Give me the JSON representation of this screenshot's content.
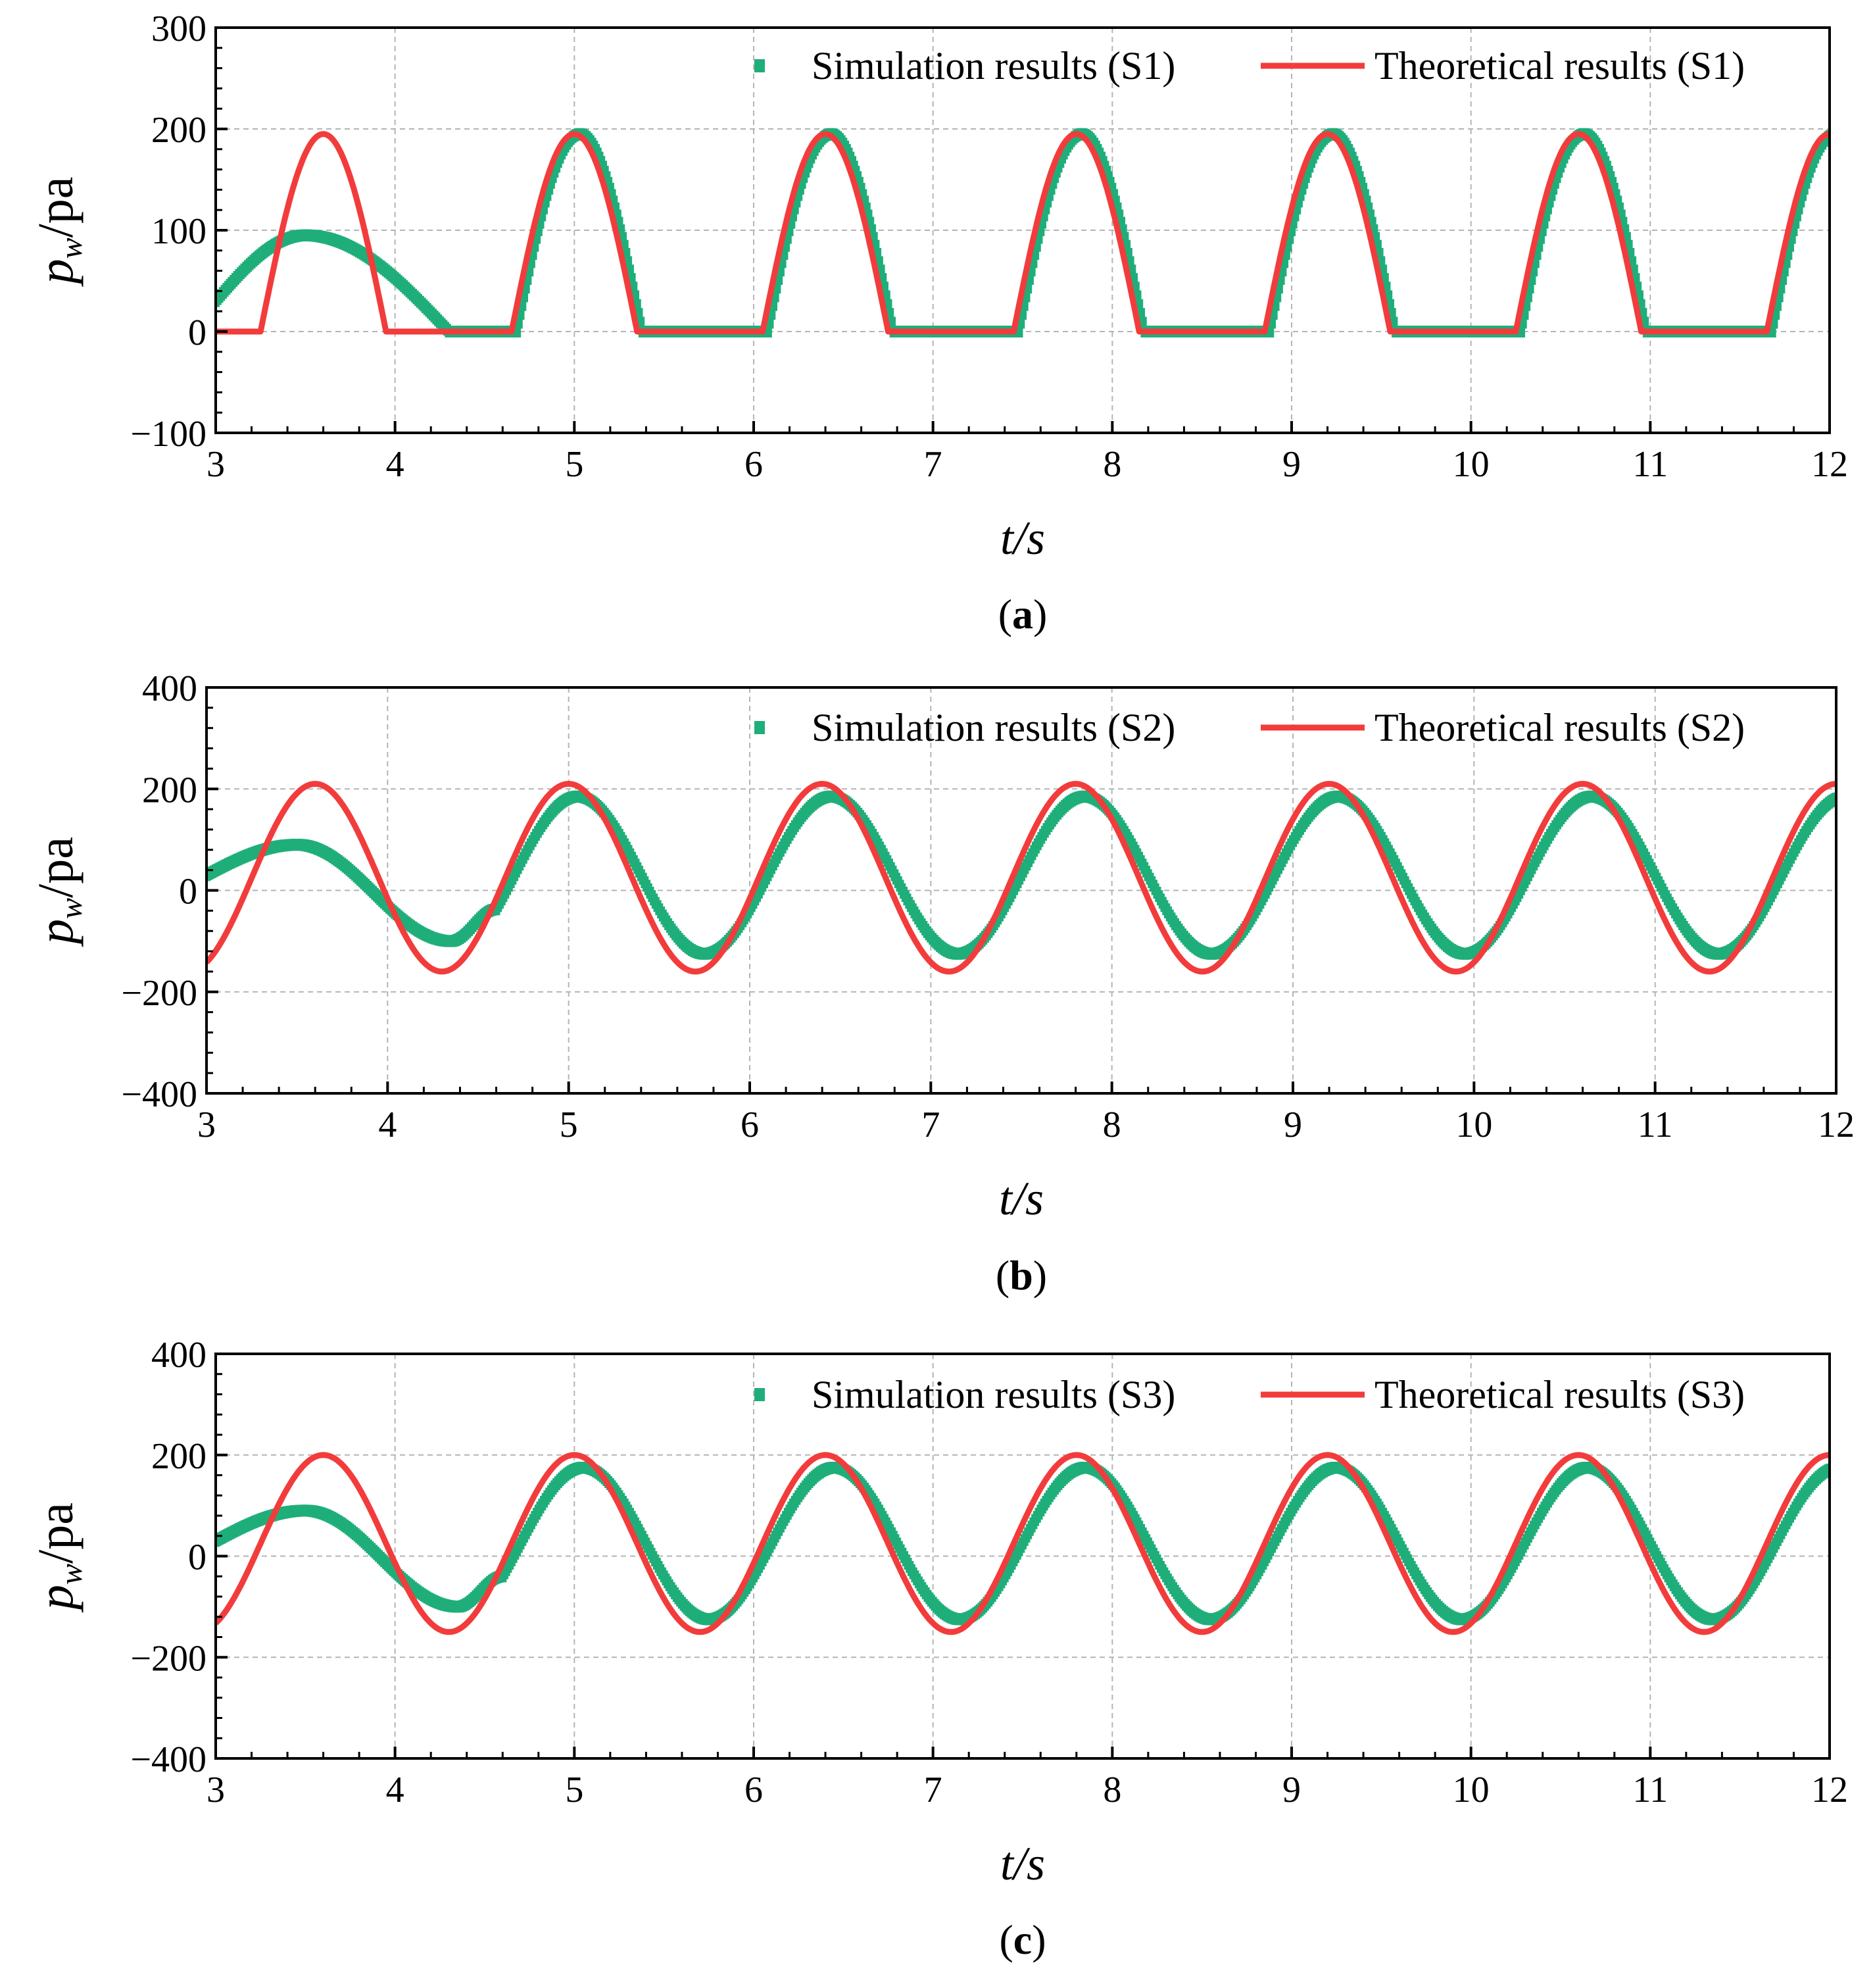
{
  "figure": {
    "x_axis_label": "t/s",
    "y_axis_label_main": "p",
    "y_axis_label_sub": "w",
    "y_axis_label_unit": "/pa"
  },
  "colors": {
    "simulation": "#1fae7a",
    "theoretical": "#f23c3c",
    "grid": "#b4b4b4",
    "axis": "#000000"
  },
  "chart_data": [
    {
      "type": "line",
      "panel": "a",
      "caption_letter": "a",
      "caption": "(a)",
      "xlabel": "t/s",
      "ylabel": "p_w/pa",
      "xlim": [
        3,
        12
      ],
      "ylim": [
        -100,
        300
      ],
      "x_ticks": [
        3,
        4,
        5,
        6,
        7,
        8,
        9,
        10,
        11,
        12
      ],
      "y_ticks": [
        -100,
        0,
        100,
        200,
        300
      ],
      "y_tick_labels": [
        "−100",
        "0",
        "100",
        "200",
        "300"
      ],
      "grid": true,
      "legend_position": "top-right",
      "series": [
        {
          "name": "Simulation results (S1)",
          "style": "scatter",
          "model": "clipped-sine",
          "amplitude": 195,
          "offset": 0,
          "period": 1.4,
          "peak_time": 5.03,
          "clip_min": 0,
          "startup": {
            "until": 4.3,
            "start_value": 30,
            "peak_value": 95,
            "peak_time": 3.5
          }
        },
        {
          "name": "Theoretical results (S1)",
          "style": "line",
          "model": "clipped-sine",
          "amplitude": 195,
          "offset": 0,
          "period": 1.4,
          "peak_time": 3.6,
          "clip_min": 0
        }
      ]
    },
    {
      "type": "line",
      "panel": "b",
      "caption_letter": "b",
      "caption": "(b)",
      "xlabel": "t/s",
      "ylabel": "p_w/pa",
      "xlim": [
        3,
        12
      ],
      "ylim": [
        -400,
        400
      ],
      "x_ticks": [
        3,
        4,
        5,
        6,
        7,
        8,
        9,
        10,
        11,
        12
      ],
      "y_ticks": [
        -400,
        -200,
        0,
        200,
        400
      ],
      "y_tick_labels": [
        "−400",
        "−200",
        "0",
        "200",
        "400"
      ],
      "grid": true,
      "legend_position": "top-right",
      "series": [
        {
          "name": "Simulation results (S2)",
          "style": "scatter",
          "model": "sine",
          "amplitude": 155,
          "offset": 30,
          "period": 1.4,
          "peak_time": 5.05,
          "startup": {
            "until": 4.6,
            "start_value": 30,
            "peak_value": 90,
            "peak_time": 3.5,
            "trough_value": -100,
            "trough_time": 4.35
          }
        },
        {
          "name": "Theoretical results (S2)",
          "style": "line",
          "model": "sine",
          "amplitude": 185,
          "offset": 25,
          "period": 1.4,
          "peak_time": 3.6
        }
      ]
    },
    {
      "type": "line",
      "panel": "c",
      "caption_letter": "c",
      "caption": "(c)",
      "xlabel": "t/s",
      "ylabel": "p_w/pa",
      "xlim": [
        3,
        12
      ],
      "ylim": [
        -400,
        400
      ],
      "x_ticks": [
        3,
        4,
        5,
        6,
        7,
        8,
        9,
        10,
        11,
        12
      ],
      "y_ticks": [
        -400,
        -200,
        0,
        200,
        400
      ],
      "y_tick_labels": [
        "−400",
        "−200",
        "0",
        "200",
        "400"
      ],
      "grid": true,
      "legend_position": "top-right",
      "series": [
        {
          "name": "Simulation results (S3)",
          "style": "scatter",
          "model": "sine",
          "amplitude": 150,
          "offset": 25,
          "period": 1.4,
          "peak_time": 5.05,
          "startup": {
            "until": 4.6,
            "start_value": 30,
            "peak_value": 90,
            "peak_time": 3.5,
            "trough_value": -100,
            "trough_time": 4.35
          }
        },
        {
          "name": "Theoretical results (S3)",
          "style": "line",
          "model": "sine",
          "amplitude": 175,
          "offset": 25,
          "period": 1.4,
          "peak_time": 3.6
        }
      ]
    }
  ]
}
